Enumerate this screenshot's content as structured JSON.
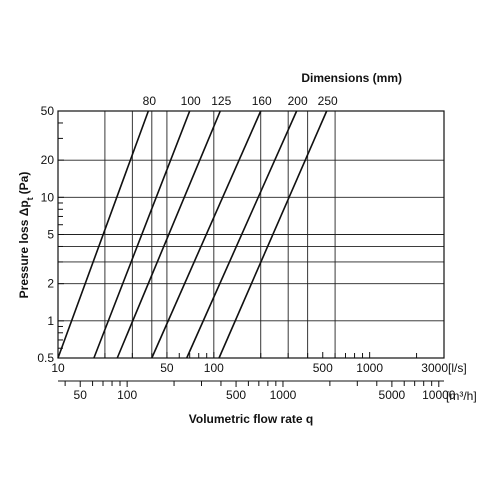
{
  "chart_data": {
    "type": "line",
    "title": "Dimensions (mm)",
    "xlabel": "Volumetric flow rate q",
    "ylabel": "Pressure loss Δp",
    "ylabel_subscript": "t",
    "ylabel_unit": "(Pa)",
    "x_scale": "log",
    "y_scale": "log",
    "xlim": [
      10,
      3000
    ],
    "ylim": [
      0.5,
      50
    ],
    "x_unit_primary": "[l/s]",
    "x_unit_secondary": "[m³/h]",
    "x_tick_labels_primary": [
      {
        "value": 10,
        "label": "10"
      },
      {
        "value": 50,
        "label": "50"
      },
      {
        "value": 100,
        "label": "100"
      },
      {
        "value": 500,
        "label": "500"
      },
      {
        "value": 1000,
        "label": "1000"
      },
      {
        "value": 3000,
        "label": "3000"
      }
    ],
    "x_minor_ticks_primary": [
      20,
      30,
      40,
      60,
      70,
      80,
      90,
      200,
      300,
      400,
      600,
      700,
      800,
      900,
      2000
    ],
    "x_tick_labels_secondary": [
      {
        "value": 50,
        "label": "50"
      },
      {
        "value": 100,
        "label": "100"
      },
      {
        "value": 500,
        "label": "500"
      },
      {
        "value": 1000,
        "label": "1000"
      },
      {
        "value": 5000,
        "label": "5000"
      },
      {
        "value": 10000,
        "label": "10000"
      }
    ],
    "x_minor_ticks_secondary": [
      40,
      60,
      70,
      80,
      90,
      200,
      300,
      400,
      600,
      700,
      800,
      900,
      2000,
      3000,
      4000,
      6000,
      7000,
      8000,
      9000
    ],
    "y_tick_labels": [
      {
        "value": 0.5,
        "label": "0.5"
      },
      {
        "value": 1,
        "label": "1"
      },
      {
        "value": 2,
        "label": "2"
      },
      {
        "value": 5,
        "label": "5"
      },
      {
        "value": 10,
        "label": "10"
      },
      {
        "value": 20,
        "label": "20"
      },
      {
        "value": 50,
        "label": "50"
      }
    ],
    "y_minor_ticks": [
      0.6,
      0.7,
      0.8,
      0.9,
      3,
      4,
      6,
      7,
      8,
      9,
      30,
      40
    ],
    "x_grid": [
      20,
      30,
      40,
      50,
      100,
      200,
      300,
      400,
      600
    ],
    "y_grid": [
      1,
      2,
      3,
      4,
      5,
      10,
      20
    ],
    "series": [
      {
        "label": "80",
        "x": [
          10,
          38
        ],
        "y": [
          0.5,
          50
        ]
      },
      {
        "label": "100",
        "x": [
          17,
          70
        ],
        "y": [
          0.5,
          50
        ]
      },
      {
        "label": "125",
        "x": [
          24,
          110
        ],
        "y": [
          0.5,
          50
        ]
      },
      {
        "label": "160",
        "x": [
          40,
          200
        ],
        "y": [
          0.5,
          50
        ]
      },
      {
        "label": "200",
        "x": [
          67,
          340
        ],
        "y": [
          0.5,
          50
        ]
      },
      {
        "label": "250",
        "x": [
          108,
          530
        ],
        "y": [
          0.5,
          50
        ]
      }
    ]
  }
}
